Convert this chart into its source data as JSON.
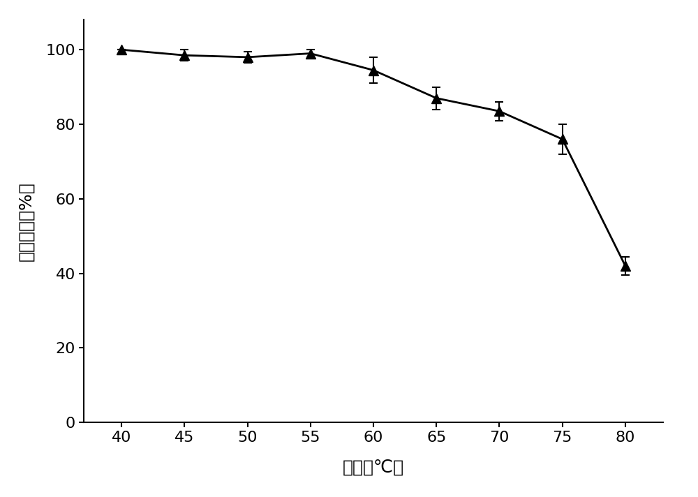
{
  "x": [
    40,
    45,
    50,
    55,
    60,
    65,
    70,
    75,
    80
  ],
  "y": [
    100,
    98.5,
    98.0,
    99.0,
    94.5,
    87.0,
    83.5,
    76.0,
    42.0
  ],
  "yerr": [
    0.0,
    1.5,
    1.5,
    1.0,
    3.5,
    3.0,
    2.5,
    4.0,
    2.5
  ],
  "xlabel": "温度（℃）",
  "ylabel": "相对酶活（%）",
  "xlim": [
    37,
    83
  ],
  "ylim": [
    0,
    108
  ],
  "xticks": [
    40,
    45,
    50,
    55,
    60,
    65,
    70,
    75,
    80
  ],
  "yticks": [
    0,
    20,
    40,
    60,
    80,
    100
  ],
  "line_color": "#000000",
  "marker": "^",
  "marker_size": 10,
  "marker_facecolor": "#000000",
  "marker_edgecolor": "#000000",
  "linewidth": 2.0,
  "capsize": 4,
  "xlabel_fontsize": 18,
  "ylabel_fontsize": 18,
  "tick_fontsize": 16,
  "background_color": "#ffffff"
}
